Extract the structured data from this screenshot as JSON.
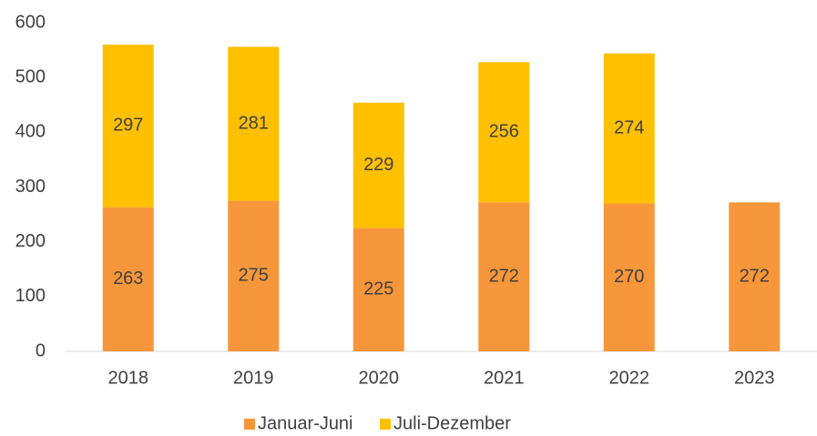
{
  "chart_data": {
    "type": "stacked_bar",
    "categories": [
      "2018",
      "2019",
      "2020",
      "2021",
      "2022",
      "2023"
    ],
    "series": [
      {
        "name": "Januar-Juni",
        "color": "#f7963a",
        "values": [
          263,
          275,
          225,
          272,
          270,
          272
        ]
      },
      {
        "name": "Juli-Dezember",
        "color": "#ffc000",
        "values": [
          297,
          281,
          229,
          256,
          274,
          null
        ]
      }
    ],
    "ylim": [
      0,
      600
    ],
    "yticks": [
      0,
      100,
      200,
      300,
      400,
      500,
      600
    ],
    "grid": false,
    "legend": "bottom"
  }
}
